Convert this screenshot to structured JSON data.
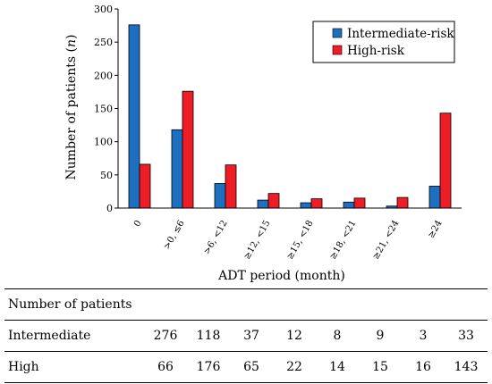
{
  "chart_data": {
    "type": "bar",
    "title": "",
    "xlabel": "ADT period (month)",
    "ylabel": "Number of patients",
    "ylabel_italic": "n",
    "ylim": [
      0,
      300
    ],
    "yticks": [
      0,
      50,
      100,
      150,
      200,
      250,
      300
    ],
    "categories": [
      "0",
      ">0, ≤6",
      ">6, <12",
      "≥12, <15",
      "≥15, <18",
      "≥18, <21",
      "≥21, <24",
      "≥24"
    ],
    "series": [
      {
        "name": "Intermediate-risk",
        "color": "#1f6fc1",
        "values": [
          276,
          118,
          37,
          12,
          8,
          9,
          3,
          33
        ]
      },
      {
        "name": "High-risk",
        "color": "#ee1c25",
        "values": [
          66,
          176,
          65,
          22,
          14,
          15,
          16,
          143
        ]
      }
    ],
    "legend_position": "top-right",
    "grid": false
  },
  "table": {
    "header": "Number of patients",
    "rows": [
      {
        "label": "Intermediate",
        "values": [
          276,
          118,
          37,
          12,
          8,
          9,
          3,
          33
        ]
      },
      {
        "label": "High",
        "values": [
          66,
          176,
          65,
          22,
          14,
          15,
          16,
          143
        ]
      }
    ]
  }
}
